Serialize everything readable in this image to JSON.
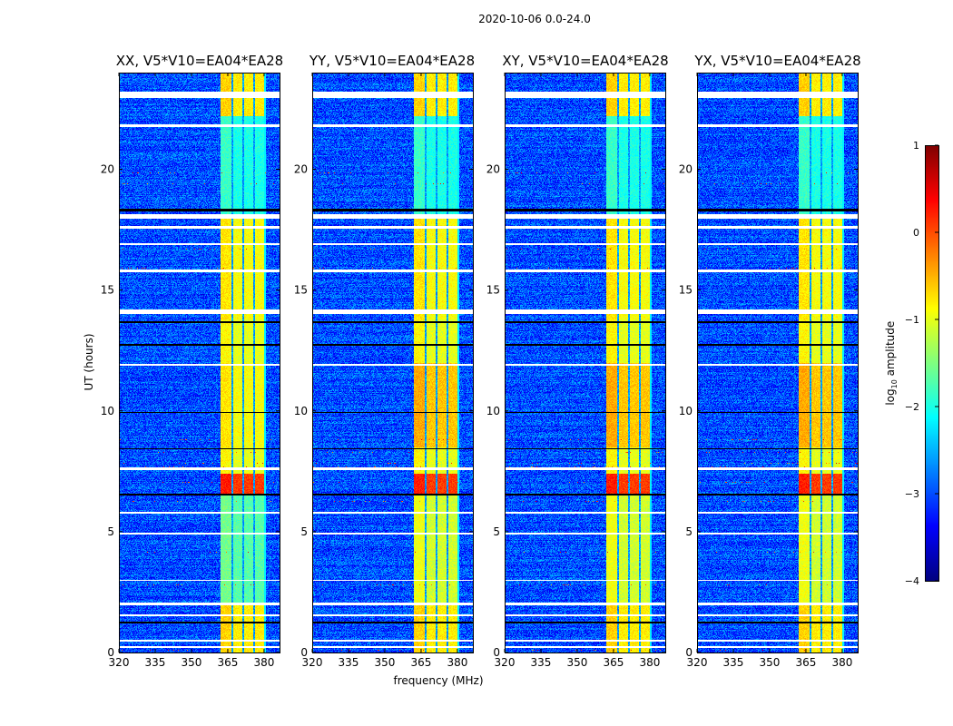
{
  "suptitle": "2020-10-06 0.0-24.0",
  "xlabel": "frequency (MHz)",
  "ylabel": "UT (hours)",
  "colorbar": {
    "label_prefix": "log",
    "label_sub": "10",
    "label_suffix": " amplitude",
    "ticks": [
      "1",
      "0",
      "−1",
      "−2",
      "−3",
      "−4"
    ],
    "range": [
      -4,
      1
    ],
    "colormap": "jet"
  },
  "chart_data": {
    "type": "heatmap",
    "title": "2020-10-06 0.0-24.0",
    "xlabel": "frequency (MHz)",
    "ylabel": "UT (hours)",
    "xlim": [
      320,
      386.4
    ],
    "ylim": [
      0,
      24
    ],
    "xticks": [
      "320",
      "335",
      "350",
      "365",
      "380"
    ],
    "xtick_values": [
      320,
      335,
      350,
      365,
      380
    ],
    "yticks": [
      "0",
      "5",
      "10",
      "15",
      "20"
    ],
    "ytick_values": [
      0,
      5,
      10,
      15,
      20
    ],
    "colorbar_range": [
      -4,
      1
    ],
    "panels": [
      {
        "title": "XX, V5*V10=EA04*EA28"
      },
      {
        "title": "YY, V5*V10=EA04*EA28"
      },
      {
        "title": "XY, V5*V10=EA04*EA28"
      },
      {
        "title": "YX, V5*V10=EA04*EA28"
      }
    ],
    "background_level": -3,
    "rfi_band_mhz": [
      362,
      380
    ],
    "rfi_band_gaps_mhz": [
      367,
      371.5,
      376
    ],
    "rfi_band_levels": [
      {
        "hours": [
          22.2,
          24
        ],
        "level": -0.8
      },
      {
        "hours": [
          18,
          22.2
        ],
        "level": -2.0
      },
      {
        "hours": [
          13.8,
          18
        ],
        "level": -0.9
      },
      {
        "hours": [
          12,
          13.8
        ],
        "level": -1.0
      },
      {
        "hours": [
          8.5,
          12
        ],
        "level": -0.6
      },
      {
        "hours": [
          7.4,
          8.5
        ],
        "level": -1.0
      },
      {
        "hours": [
          6.5,
          7.4
        ],
        "level": 0.1
      },
      {
        "hours": [
          2,
          6.5
        ],
        "level": -1.1
      },
      {
        "hours": [
          0,
          2
        ],
        "level": -0.8
      }
    ],
    "flagged_hours": [
      [
        22.95,
        23.2
      ],
      [
        21.75,
        21.85
      ],
      [
        17.95,
        18.15
      ],
      [
        17.55,
        17.65
      ],
      [
        16.85,
        16.95
      ],
      [
        15.75,
        15.85
      ],
      [
        14.0,
        14.2
      ],
      [
        11.85,
        11.95
      ],
      [
        7.55,
        7.65
      ],
      [
        5.75,
        5.82
      ],
      [
        4.9,
        4.96
      ],
      [
        2.95,
        3.02
      ],
      [
        1.95,
        2.05
      ],
      [
        1.5,
        1.56
      ],
      [
        0.45,
        0.52
      ],
      [
        0.2,
        0.26
      ]
    ],
    "dead_hours": [
      [
        18.25,
        18.35
      ],
      [
        13.65,
        13.72
      ],
      [
        12.7,
        12.76
      ],
      [
        9.9,
        9.96
      ],
      [
        8.4,
        8.46
      ],
      [
        6.5,
        6.56
      ],
      [
        1.2,
        1.26
      ]
    ]
  }
}
